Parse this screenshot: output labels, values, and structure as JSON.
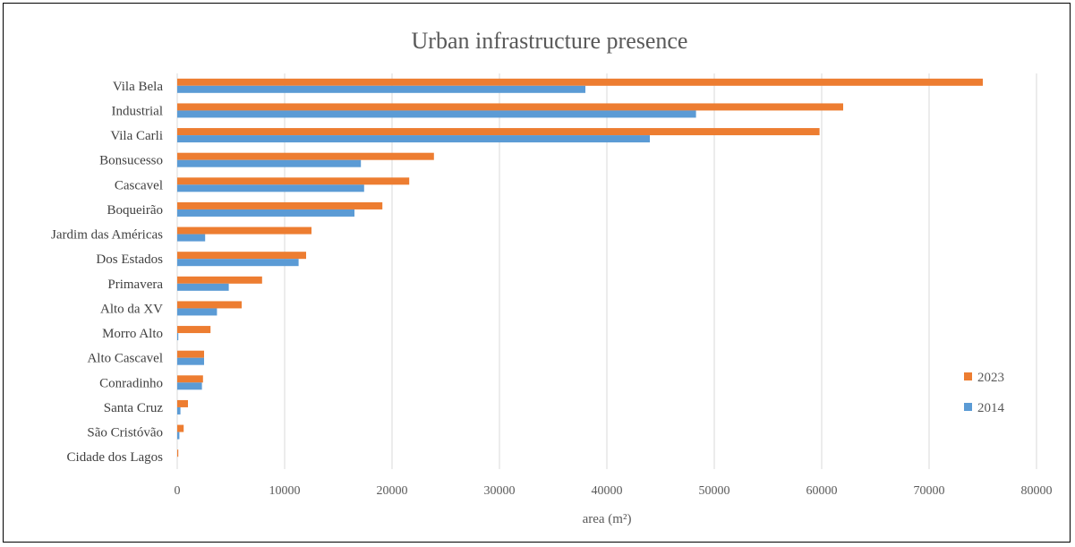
{
  "chart_data": {
    "type": "bar",
    "orientation": "horizontal",
    "title": "Urban infrastructure  presence",
    "xlabel": "area (m²)",
    "ylabel": "",
    "xlim": [
      0,
      80000
    ],
    "xticks": [
      0,
      10000,
      20000,
      30000,
      40000,
      50000,
      60000,
      70000,
      80000
    ],
    "grid": "vertical",
    "legend_position": "right",
    "categories": [
      "Vila Bela",
      "Industrial",
      "Vila Carli",
      "Bonsucesso",
      "Cascavel",
      "Boqueirão",
      "Jardim das Américas",
      "Dos Estados",
      "Primavera",
      "Alto da XV",
      "Morro Alto",
      "Alto Cascavel",
      "Conradinho",
      "Santa Cruz",
      "São Cristóvão",
      "Cidade dos Lagos"
    ],
    "series": [
      {
        "name": "2023",
        "color": "#ED7D31",
        "values": [
          75000,
          62000,
          59800,
          23900,
          21600,
          19100,
          12500,
          12000,
          7900,
          6000,
          3100,
          2500,
          2400,
          1000,
          600,
          100
        ]
      },
      {
        "name": "2014",
        "color": "#5B9BD5",
        "values": [
          38000,
          48300,
          44000,
          17100,
          17400,
          16500,
          2600,
          11300,
          4800,
          3700,
          100,
          2500,
          2300,
          300,
          200,
          0
        ]
      }
    ]
  }
}
